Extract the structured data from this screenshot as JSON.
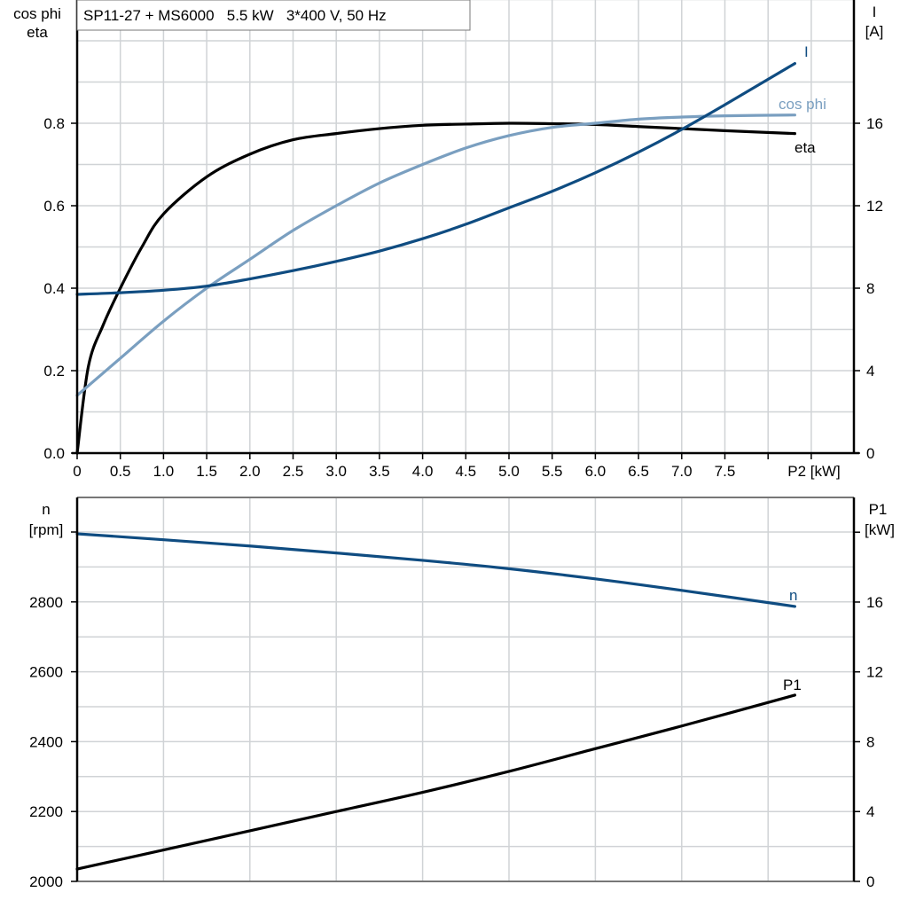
{
  "chart_data": [
    {
      "type": "line",
      "title": "SP11-27 + MS6000   5.5 kW   3*400 V, 50 Hz",
      "xlabel": "P2 [kW]",
      "ylabel_left": [
        "cos phi",
        "eta"
      ],
      "ylabel_right": [
        "I",
        "[A]"
      ],
      "xlim": [
        0,
        8.9
      ],
      "ylim_left": [
        0,
        1.1
      ],
      "ylim_right": [
        0,
        22
      ],
      "grid": true,
      "x_ticks": [
        "0",
        "0.5",
        "1.0",
        "1.5",
        "2.0",
        "2.5",
        "3.0",
        "3.5",
        "4.0",
        "4.5",
        "5.0",
        "5.5",
        "6.0",
        "6.5",
        "7.0",
        "7.5"
      ],
      "y_ticks_left": [
        "0.0",
        "0.2",
        "0.4",
        "0.6",
        "0.8"
      ],
      "y_ticks_right": [
        "0",
        "4",
        "8",
        "12",
        "16"
      ],
      "series": [
        {
          "name": "eta",
          "axis": "left",
          "color": "#000000",
          "x": [
            0,
            0.13,
            0.3,
            0.5,
            0.75,
            1.0,
            1.5,
            2.0,
            2.5,
            3.0,
            3.5,
            4.0,
            4.5,
            5.0,
            5.5,
            6.0,
            6.5,
            7.0,
            7.5,
            8.31
          ],
          "y": [
            0,
            0.21,
            0.31,
            0.4,
            0.5,
            0.58,
            0.67,
            0.725,
            0.76,
            0.775,
            0.787,
            0.795,
            0.798,
            0.8,
            0.799,
            0.797,
            0.792,
            0.787,
            0.782,
            0.775
          ]
        },
        {
          "name": "cos phi",
          "axis": "left",
          "color": "#7a9fc0",
          "x": [
            0,
            0.5,
            1.0,
            1.5,
            2.0,
            2.5,
            3.0,
            3.5,
            4.0,
            4.5,
            5.0,
            5.5,
            6.0,
            6.5,
            7.0,
            7.5,
            8.31
          ],
          "y": [
            0.14,
            0.23,
            0.32,
            0.4,
            0.47,
            0.54,
            0.6,
            0.655,
            0.7,
            0.74,
            0.77,
            0.79,
            0.8,
            0.81,
            0.815,
            0.818,
            0.82
          ]
        },
        {
          "name": "I",
          "axis": "right",
          "color": "#0f4c81",
          "x": [
            0,
            0.5,
            1.0,
            1.5,
            2.0,
            2.5,
            3.0,
            3.5,
            4.0,
            4.5,
            5.0,
            5.5,
            6.0,
            6.5,
            7.0,
            7.5,
            8.31
          ],
          "y": [
            7.7,
            7.78,
            7.9,
            8.1,
            8.45,
            8.85,
            9.3,
            9.8,
            10.4,
            11.1,
            11.9,
            12.7,
            13.6,
            14.6,
            15.7,
            16.9,
            18.9
          ]
        }
      ]
    },
    {
      "type": "line",
      "xlim": [
        0,
        8.9
      ],
      "ylabel_left": [
        "n",
        "[rpm]"
      ],
      "ylabel_right": [
        "P1",
        "[kW]"
      ],
      "ylim_left": [
        2000,
        3100
      ],
      "ylim_right": [
        0,
        22
      ],
      "grid": true,
      "y_ticks_left": [
        "2000",
        "2200",
        "2400",
        "2600",
        "2800"
      ],
      "y_ticks_right": [
        "0",
        "4",
        "8",
        "12",
        "16"
      ],
      "series": [
        {
          "name": "n",
          "axis": "left",
          "color": "#0f4c81",
          "x": [
            0,
            1,
            2,
            3,
            4,
            5,
            6,
            7,
            8.31
          ],
          "y": [
            2995,
            2978,
            2960,
            2940,
            2919,
            2895,
            2866,
            2833,
            2787
          ]
        },
        {
          "name": "P1",
          "axis": "right",
          "color": "#000000",
          "x": [
            0,
            1,
            2,
            3,
            4,
            5,
            6,
            7,
            8.31
          ],
          "y": [
            0.71,
            1.8,
            2.9,
            4.0,
            5.1,
            6.3,
            7.6,
            8.9,
            10.67
          ]
        }
      ]
    }
  ]
}
